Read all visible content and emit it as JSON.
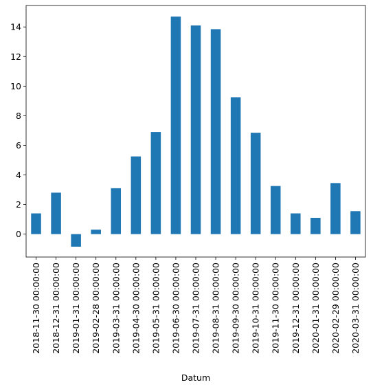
{
  "chart_data": {
    "type": "bar",
    "categories": [
      "2018-11-30 00:00:00",
      "2018-12-31 00:00:00",
      "2019-01-31 00:00:00",
      "2019-02-28 00:00:00",
      "2019-03-31 00:00:00",
      "2019-04-30 00:00:00",
      "2019-05-31 00:00:00",
      "2019-06-30 00:00:00",
      "2019-07-31 00:00:00",
      "2019-08-31 00:00:00",
      "2019-09-30 00:00:00",
      "2019-10-31 00:00:00",
      "2019-11-30 00:00:00",
      "2019-12-31 00:00:00",
      "2020-01-31 00:00:00",
      "2020-02-29 00:00:00",
      "2020-03-31 00:00:00"
    ],
    "values": [
      1.4,
      2.8,
      -0.85,
      0.3,
      3.1,
      5.25,
      6.9,
      14.7,
      14.1,
      13.85,
      9.25,
      6.85,
      3.25,
      1.4,
      1.1,
      3.45,
      1.55
    ],
    "xlabel": "Datum",
    "ylabel": "",
    "title": "",
    "ylim": [
      -1.55,
      15.45
    ],
    "yticks": [
      0,
      2,
      4,
      6,
      8,
      10,
      12,
      14
    ],
    "bar_color": "#1f77b4",
    "grid": false,
    "legend": "none"
  }
}
